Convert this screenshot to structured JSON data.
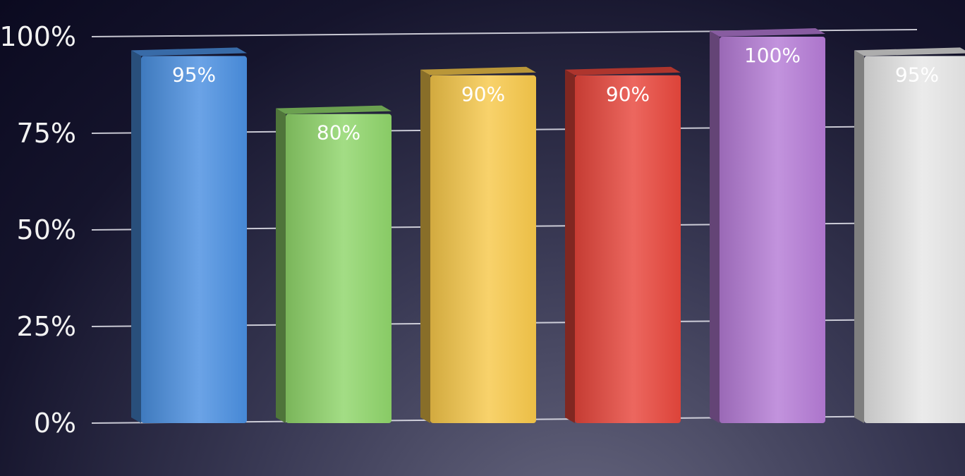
{
  "chart_data": {
    "type": "bar",
    "title": "",
    "xlabel": "",
    "ylabel": "",
    "ylim": [
      0,
      100
    ],
    "yticks": [
      "0%",
      "25%",
      "50%",
      "75%",
      "100%"
    ],
    "grid": true,
    "legend": "none",
    "series": [
      {
        "values": [
          95,
          80,
          90,
          90,
          100,
          95
        ],
        "labels": [
          "95%",
          "80%",
          "90%",
          "90%",
          "100%",
          "95%"
        ],
        "colors": [
          "#4a8fe0",
          "#8fd56a",
          "#f7c84a",
          "#e8463c",
          "#b57bd6",
          "#e6e6e6"
        ]
      }
    ]
  }
}
